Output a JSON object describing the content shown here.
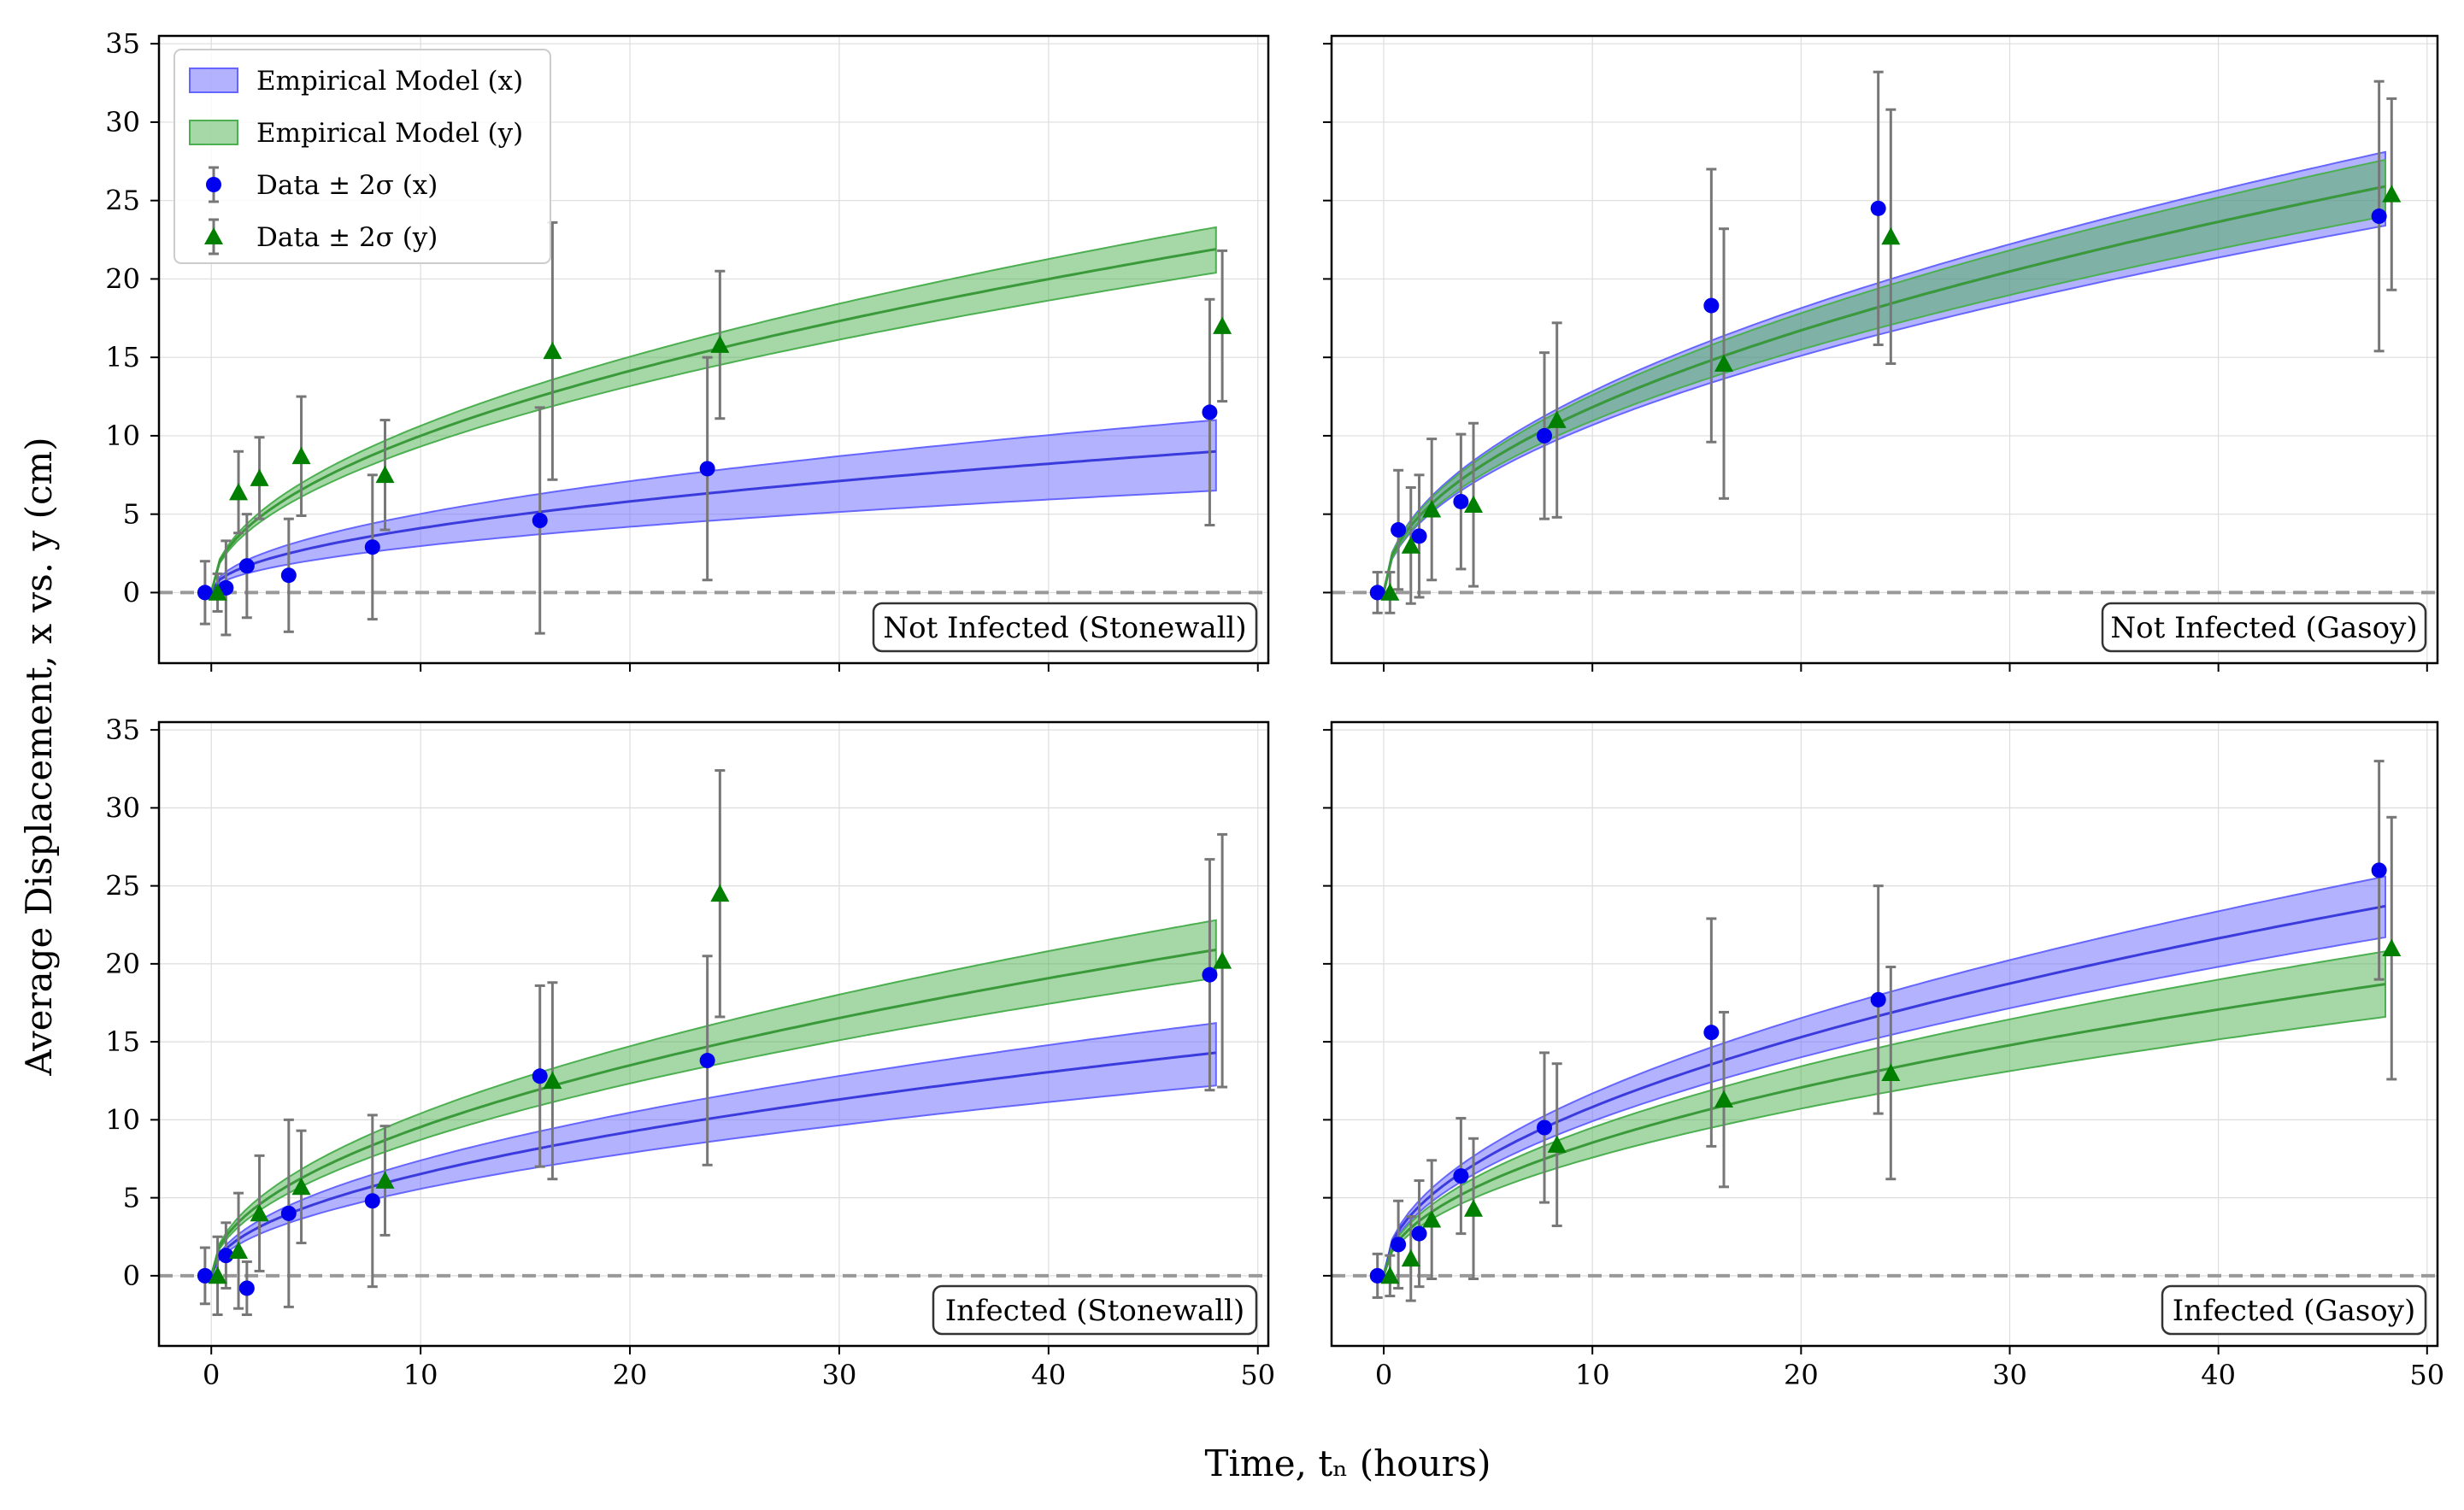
{
  "figure": {
    "xlabel": "Time, tₙ (hours)",
    "ylabel": "Average Displacement, x vs. y (cm)"
  },
  "colors": {
    "x_series": "#0000ee",
    "x_band": "#6666ff",
    "y_series": "#007f00",
    "y_band": "#4caf50",
    "errorbar": "#777777",
    "zero_line": "#999999",
    "grid": "#dddddd"
  },
  "legend": {
    "placement": "upper-left of top-left panel",
    "items": [
      {
        "kind": "band-x",
        "label": "Empirical Model (x)"
      },
      {
        "kind": "band-y",
        "label": "Empirical Model (y)"
      },
      {
        "kind": "marker-x",
        "label": "Data ± 2σ (x)"
      },
      {
        "kind": "marker-y",
        "label": "Data ± 2σ (y)"
      }
    ]
  },
  "chart_data": [
    {
      "type": "line",
      "annotation": "Not Infected (Stonewall)",
      "xlim": [
        -2.5,
        50.5
      ],
      "ylim": [
        -4.5,
        35.5
      ],
      "xticks": [
        0,
        10,
        20,
        30,
        40,
        50
      ],
      "yticks": [
        0,
        5,
        10,
        15,
        20,
        25,
        30,
        35
      ],
      "grid": true,
      "x_model": {
        "center_at_48": 9.0,
        "upper_at_48": 11.0,
        "lower_at_48": 6.5,
        "shape": "power-0.5"
      },
      "y_model": {
        "center_at_48": 21.9,
        "upper_at_48": 23.3,
        "lower_at_48": 20.4,
        "shape": "power-0.5"
      },
      "x_data": [
        {
          "t": 0,
          "v": 0.0,
          "err": 2.0
        },
        {
          "t": 1,
          "v": 0.3,
          "err": 3.0
        },
        {
          "t": 2,
          "v": 1.7,
          "err": 3.3
        },
        {
          "t": 4,
          "v": 1.1,
          "err": 3.6
        },
        {
          "t": 8,
          "v": 2.9,
          "err": 4.6
        },
        {
          "t": 16,
          "v": 4.6,
          "err": 7.2
        },
        {
          "t": 24,
          "v": 7.9,
          "err": 7.1
        },
        {
          "t": 48,
          "v": 11.5,
          "err": 7.2
        }
      ],
      "y_data": [
        {
          "t": 0,
          "v": 0.0,
          "err": 1.2
        },
        {
          "t": 1,
          "v": 6.4,
          "err": 2.6
        },
        {
          "t": 2,
          "v": 7.3,
          "err": 2.6
        },
        {
          "t": 4,
          "v": 8.7,
          "err": 3.8
        },
        {
          "t": 8,
          "v": 7.5,
          "err": 3.5
        },
        {
          "t": 16,
          "v": 15.4,
          "err": 8.2
        },
        {
          "t": 24,
          "v": 15.8,
          "err": 4.7
        },
        {
          "t": 48,
          "v": 17.0,
          "err": 4.8
        }
      ]
    },
    {
      "type": "line",
      "annotation": "Not Infected (Gasoy)",
      "xlim": [
        -2.5,
        50.5
      ],
      "ylim": [
        -4.5,
        35.5
      ],
      "xticks": [
        0,
        10,
        20,
        30,
        40,
        50
      ],
      "yticks": [
        0,
        5,
        10,
        15,
        20,
        25,
        30,
        35
      ],
      "grid": true,
      "x_model": {
        "center_at_48": 25.9,
        "upper_at_48": 28.1,
        "lower_at_48": 23.4,
        "shape": "power-0.5"
      },
      "y_model": {
        "center_at_48": 25.9,
        "upper_at_48": 27.6,
        "lower_at_48": 24.0,
        "shape": "power-0.5"
      },
      "x_data": [
        {
          "t": 0,
          "v": 0.0,
          "err": 1.3
        },
        {
          "t": 1,
          "v": 4.0,
          "err": 3.8
        },
        {
          "t": 2,
          "v": 3.6,
          "err": 3.9
        },
        {
          "t": 4,
          "v": 5.8,
          "err": 4.3
        },
        {
          "t": 8,
          "v": 10.0,
          "err": 5.3
        },
        {
          "t": 16,
          "v": 18.3,
          "err": 8.7
        },
        {
          "t": 24,
          "v": 24.5,
          "err": 8.7
        },
        {
          "t": 48,
          "v": 24.0,
          "err": 8.6
        }
      ],
      "y_data": [
        {
          "t": 0,
          "v": 0.0,
          "err": 1.3
        },
        {
          "t": 1,
          "v": 3.0,
          "err": 3.7
        },
        {
          "t": 2,
          "v": 5.3,
          "err": 4.5
        },
        {
          "t": 4,
          "v": 5.6,
          "err": 5.2
        },
        {
          "t": 8,
          "v": 11.0,
          "err": 6.2
        },
        {
          "t": 16,
          "v": 14.6,
          "err": 8.6
        },
        {
          "t": 24,
          "v": 22.7,
          "err": 8.1
        },
        {
          "t": 48,
          "v": 25.4,
          "err": 6.1
        }
      ]
    },
    {
      "type": "line",
      "annotation": "Infected (Stonewall)",
      "xlim": [
        -2.5,
        50.5
      ],
      "ylim": [
        -4.5,
        35.5
      ],
      "xticks": [
        0,
        10,
        20,
        30,
        40,
        50
      ],
      "yticks": [
        0,
        5,
        10,
        15,
        20,
        25,
        30,
        35
      ],
      "grid": true,
      "x_model": {
        "center_at_48": 14.3,
        "upper_at_48": 16.2,
        "lower_at_48": 12.2,
        "shape": "power-0.5"
      },
      "y_model": {
        "center_at_48": 20.9,
        "upper_at_48": 22.8,
        "lower_at_48": 19.1,
        "shape": "power-0.5"
      },
      "x_data": [
        {
          "t": 0,
          "v": 0.0,
          "err": 1.8
        },
        {
          "t": 1,
          "v": 1.3,
          "err": 2.1
        },
        {
          "t": 2,
          "v": -0.8,
          "err": 1.7
        },
        {
          "t": 4,
          "v": 4.0,
          "err": 6.0
        },
        {
          "t": 8,
          "v": 4.8,
          "err": 5.5
        },
        {
          "t": 16,
          "v": 12.8,
          "err": 5.8
        },
        {
          "t": 24,
          "v": 13.8,
          "err": 6.7
        },
        {
          "t": 48,
          "v": 19.3,
          "err": 7.4
        }
      ],
      "y_data": [
        {
          "t": 0,
          "v": 0.0,
          "err": 2.5
        },
        {
          "t": 1,
          "v": 1.6,
          "err": 3.7
        },
        {
          "t": 2,
          "v": 4.0,
          "err": 3.7
        },
        {
          "t": 4,
          "v": 5.7,
          "err": 3.6
        },
        {
          "t": 8,
          "v": 6.1,
          "err": 3.5
        },
        {
          "t": 16,
          "v": 12.5,
          "err": 6.3
        },
        {
          "t": 24,
          "v": 24.5,
          "err": 7.9
        },
        {
          "t": 48,
          "v": 20.2,
          "err": 8.1
        }
      ]
    },
    {
      "type": "line",
      "annotation": "Infected (Gasoy)",
      "xlim": [
        -2.5,
        50.5
      ],
      "ylim": [
        -4.5,
        35.5
      ],
      "xticks": [
        0,
        10,
        20,
        30,
        40,
        50
      ],
      "yticks": [
        0,
        5,
        10,
        15,
        20,
        25,
        30,
        35
      ],
      "grid": true,
      "x_model": {
        "center_at_48": 23.7,
        "upper_at_48": 25.6,
        "lower_at_48": 21.7,
        "shape": "power-0.5"
      },
      "y_model": {
        "center_at_48": 18.7,
        "upper_at_48": 20.8,
        "lower_at_48": 16.6,
        "shape": "power-0.5"
      },
      "x_data": [
        {
          "t": 0,
          "v": 0.0,
          "err": 1.4
        },
        {
          "t": 1,
          "v": 2.0,
          "err": 2.8
        },
        {
          "t": 2,
          "v": 2.7,
          "err": 3.4
        },
        {
          "t": 4,
          "v": 6.4,
          "err": 3.7
        },
        {
          "t": 8,
          "v": 9.5,
          "err": 4.8
        },
        {
          "t": 16,
          "v": 15.6,
          "err": 7.3
        },
        {
          "t": 24,
          "v": 17.7,
          "err": 7.3
        },
        {
          "t": 48,
          "v": 26.0,
          "err": 7.0
        }
      ],
      "y_data": [
        {
          "t": 0,
          "v": 0.0,
          "err": 1.3
        },
        {
          "t": 1,
          "v": 1.1,
          "err": 2.7
        },
        {
          "t": 2,
          "v": 3.6,
          "err": 3.8
        },
        {
          "t": 4,
          "v": 4.3,
          "err": 4.5
        },
        {
          "t": 8,
          "v": 8.4,
          "err": 5.2
        },
        {
          "t": 16,
          "v": 11.3,
          "err": 5.6
        },
        {
          "t": 24,
          "v": 13.0,
          "err": 6.8
        },
        {
          "t": 48,
          "v": 21.0,
          "err": 8.4
        }
      ]
    }
  ]
}
